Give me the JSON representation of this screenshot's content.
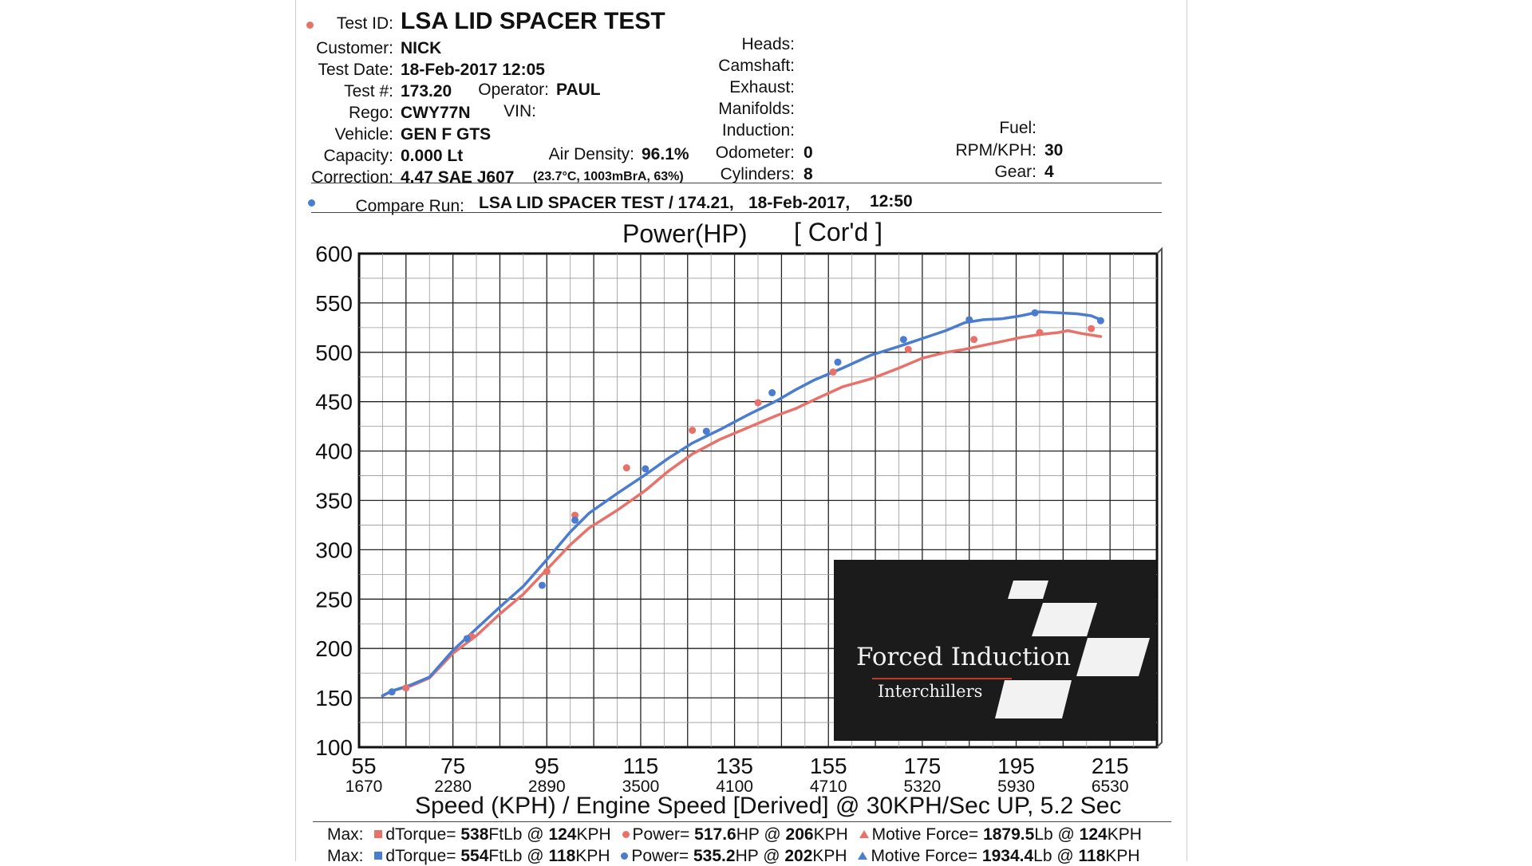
{
  "colors": {
    "run": "#e8726a",
    "compare": "#4a7ccf",
    "grid": "#222222",
    "logo_bg": "#1b1b1b"
  },
  "header": {
    "test_id_label": "Test ID:",
    "test_id": "LSA LID SPACER TEST",
    "customer_label": "Customer:",
    "customer": "NICK",
    "test_date_label": "Test Date:",
    "test_date": "18-Feb-2017 12:05",
    "test_num_label": "Test #:",
    "test_num": "173.20",
    "operator_label": "Operator:",
    "operator": "PAUL",
    "rego_label": "Rego:",
    "rego": "CWY77N",
    "vin_label": "VIN:",
    "vehicle_label": "Vehicle:",
    "vehicle": "GEN F GTS",
    "capacity_label": "Capacity:",
    "capacity": "0.000 Lt",
    "air_density_label": "Air Density:",
    "air_density": "96.1%",
    "correction_label": "Correction:",
    "correction": "4.47 SAE J607",
    "conditions": "(23.7°C, 1003mBrA, 63%)",
    "heads_label": "Heads:",
    "camshaft_label": "Camshaft:",
    "exhaust_label": "Exhaust:",
    "manifolds_label": "Manifolds:",
    "induction_label": "Induction:",
    "odometer_label": "Odometer:",
    "odometer": "0",
    "cylinders_label": "Cylinders:",
    "cylinders": "8",
    "fuel_label": "Fuel:",
    "rpm_kph_label": "RPM/KPH:",
    "rpm_kph": "30",
    "gear_label": "Gear:",
    "gear": "4",
    "compare_label": "Compare Run:",
    "compare_name": "LSA LID SPACER TEST / 174.21,",
    "compare_date": "18-Feb-2017,",
    "compare_time": "12:50"
  },
  "chart_data": {
    "type": "line",
    "title": "Power(HP)",
    "title_note": "[ Cor'd ]",
    "xlabel": "Speed (KPH) / Engine Speed [Derived] @ 30KPH/Sec UP, 5.2 Sec",
    "xlim": [
      55,
      225
    ],
    "ylim": [
      100,
      600
    ],
    "x_ticks": [
      "55",
      "75",
      "95",
      "115",
      "135",
      "155",
      "175",
      "195",
      "215"
    ],
    "x_ticks_rpm": [
      "1670",
      "2280",
      "2890",
      "3500",
      "4100",
      "4710",
      "5320",
      "5930",
      "6530"
    ],
    "y_ticks": [
      "600",
      "550",
      "500",
      "450",
      "400",
      "350",
      "300",
      "250",
      "200",
      "150",
      "100"
    ],
    "grid": true,
    "series": [
      {
        "x": [
          60,
          62,
          66,
          70,
          75,
          80,
          85,
          90,
          95,
          100,
          104,
          110,
          116,
          121,
          126,
          132,
          138,
          144,
          148,
          152,
          158,
          164,
          170,
          175,
          180,
          184,
          188,
          192,
          196,
          200,
          204,
          206,
          209,
          213
        ],
        "y": [
          152,
          157,
          162,
          170,
          195,
          213,
          235,
          255,
          280,
          305,
          322,
          340,
          360,
          380,
          397,
          412,
          424,
          436,
          443,
          452,
          465,
          473,
          484,
          494,
          500,
          503,
          507,
          511,
          515,
          518,
          520,
          522,
          519,
          516
        ]
      },
      {
        "x": [
          60,
          62,
          66,
          70,
          75,
          80,
          85,
          90,
          95,
          100,
          104,
          110,
          116,
          121,
          126,
          132,
          138,
          144,
          148,
          152,
          158,
          164,
          170,
          175,
          180,
          184,
          188,
          192,
          196,
          200,
          204,
          208,
          211,
          213
        ],
        "y": [
          152,
          157,
          163,
          171,
          198,
          220,
          242,
          263,
          290,
          318,
          337,
          357,
          376,
          393,
          408,
          422,
          437,
          451,
          462,
          472,
          484,
          497,
          506,
          514,
          522,
          530,
          533,
          534,
          537,
          541,
          540,
          539,
          537,
          533
        ]
      }
    ],
    "markers": [
      {
        "x": [
          65,
          79,
          95,
          101,
          112,
          126,
          140,
          156,
          172,
          186,
          200,
          211
        ],
        "y": [
          160,
          212,
          278,
          335,
          383,
          421,
          449,
          480,
          503,
          513,
          520,
          524
        ]
      },
      {
        "x": [
          62,
          78,
          94,
          101,
          116,
          129,
          143,
          157,
          171,
          185,
          199,
          213
        ],
        "y": [
          156,
          210,
          264,
          330,
          382,
          420,
          459,
          490,
          513,
          533,
          540,
          532
        ]
      }
    ]
  },
  "logo": {
    "line1": "Forced Induction",
    "line2": "Interchillers"
  },
  "footer": {
    "max_label": "Max:",
    "rows": [
      {
        "torque_label": "dTorque=",
        "torque": "538",
        "torque_unit": "FtLb @",
        "torque_at": "124",
        "torque_at_unit": "KPH",
        "power_label": "Power=",
        "power": "517.6",
        "power_unit": "HP @",
        "power_at": "206",
        "power_at_unit": "KPH",
        "force_label": "Motive Force=",
        "force": "1879.5",
        "force_unit": "Lb @",
        "force_at": "124",
        "force_at_unit": "KPH"
      },
      {
        "torque_label": "dTorque=",
        "torque": "554",
        "torque_unit": "FtLb @",
        "torque_at": "118",
        "torque_at_unit": "KPH",
        "power_label": "Power=",
        "power": "535.2",
        "power_unit": "HP @",
        "power_at": "202",
        "power_at_unit": "KPH",
        "force_label": "Motive Force=",
        "force": "1934.4",
        "force_unit": "Lb @",
        "force_at": "118",
        "force_at_unit": "KPH"
      }
    ]
  }
}
